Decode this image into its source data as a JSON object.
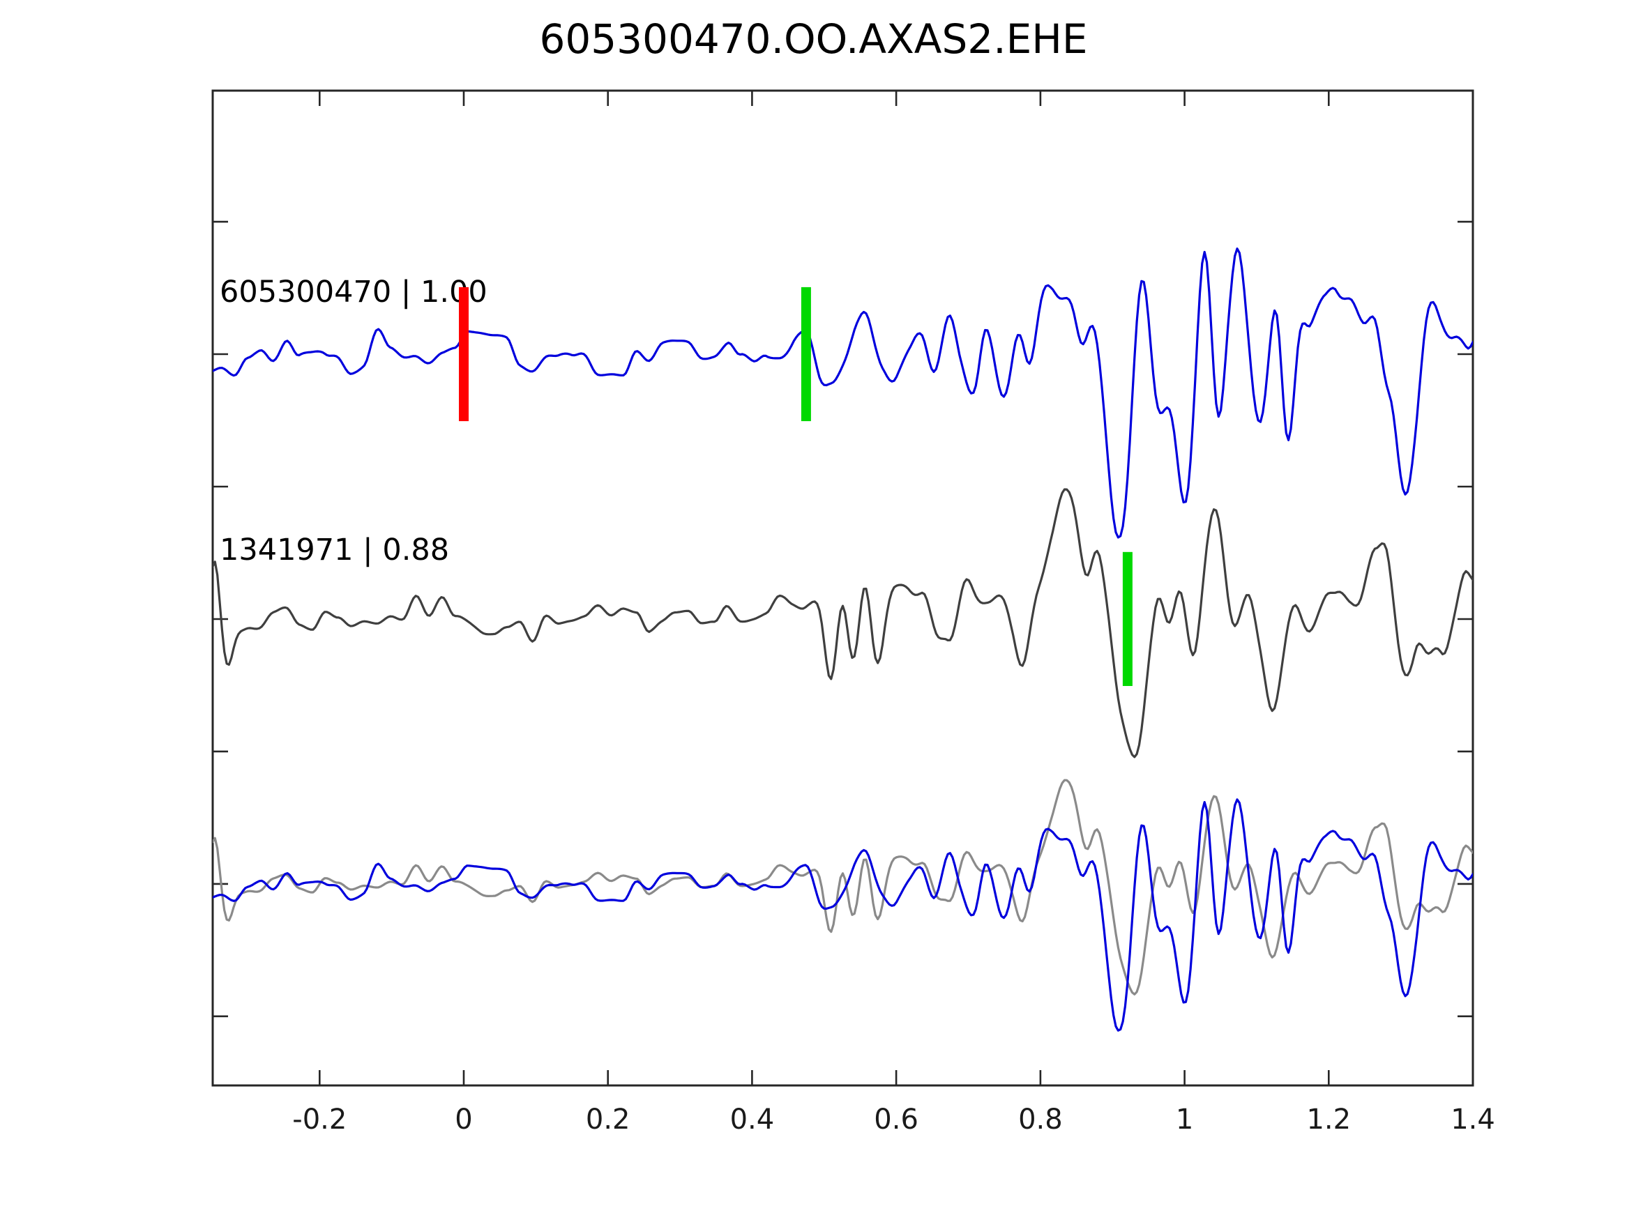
{
  "title": "605300470.OO.AXAS2.EHE",
  "chart_data": {
    "type": "line",
    "title": "605300470.OO.AXAS2.EHE",
    "xlabel": "",
    "ylabel": "",
    "x_range": [
      -0.3483,
      1.4
    ],
    "y_range": [
      -2.761,
      0.995
    ],
    "x_ticks": [
      -0.2,
      0,
      0.2,
      0.4,
      0.6,
      0.8,
      1,
      1.2,
      1.4
    ],
    "x_tick_labels": [
      "-0.2",
      "0",
      "0.2",
      "0.4",
      "0.6",
      "0.8",
      "1",
      "1.2",
      "1.4"
    ],
    "y_ticks": [
      0.5,
      0,
      -0.5,
      -1,
      -1.5,
      -2,
      -2.5
    ],
    "y_tick_labels": [
      "",
      "",
      "",
      "",
      "",
      "",
      ""
    ],
    "grid": false,
    "legend": null,
    "tick_style": "inward-on-all-four-spines",
    "colors": {
      "template_blue": "#0000dd",
      "detection_gray": "#3f3f3f",
      "overlay_gray": "#8a8a8a",
      "pick_marker_red": "#ff0000",
      "detect_marker_green": "#00d800",
      "spine": "#262626",
      "tick_label_text": "#1a1a1a",
      "label_text": "#000000"
    },
    "marker_half_height": 0.253,
    "marker_width_px": 14,
    "rows": [
      {
        "offset": 0,
        "id": "605300470",
        "correlation": "1.00",
        "label": "605300470 | 1.00",
        "series": [
          {
            "name": "template-605300470",
            "color": "#0000dd",
            "scale": 1,
            "seed": 20,
            "env": [
              [
                -0.35,
                0.1
              ],
              [
                0.4,
                0.1
              ],
              [
                0.47,
                0.13
              ],
              [
                0.6,
                0.14
              ],
              [
                0.72,
                0.16
              ],
              [
                0.86,
                0.17
              ],
              [
                0.93,
                0.13
              ],
              [
                1.18,
                0.15
              ],
              [
                1.4,
                0.13
              ]
            ],
            "features": [
              [
                0.475,
                0.013,
                0.16
              ],
              [
                0.51,
                0.012,
                -0.1
              ],
              [
                0.555,
                0.01,
                0.1
              ],
              [
                0.585,
                0.012,
                -0.12
              ],
              [
                0.63,
                0.012,
                0.1
              ],
              [
                0.675,
                0.012,
                0.12
              ],
              [
                0.705,
                0.01,
                -0.1
              ],
              [
                0.725,
                0.01,
                0.12
              ],
              [
                0.75,
                0.011,
                -0.16
              ],
              [
                0.77,
                0.009,
                0.1
              ],
              [
                0.787,
                0.009,
                -0.14
              ],
              [
                0.81,
                0.011,
                0.16
              ],
              [
                0.838,
                0.012,
                0.18
              ],
              [
                0.858,
                0.009,
                -0.1
              ],
              [
                0.872,
                0.009,
                0.14
              ],
              [
                0.908,
                0.015,
                -0.72
              ],
              [
                0.94,
                0.012,
                0.4
              ],
              [
                0.963,
                0.01,
                -0.18
              ],
              [
                1.002,
                0.012,
                -0.52
              ],
              [
                1.027,
                0.011,
                0.42
              ],
              [
                1.046,
                0.009,
                -0.46
              ],
              [
                1.076,
                0.011,
                0.38
              ],
              [
                1.104,
                0.011,
                -0.24
              ],
              [
                1.128,
                0.007,
                0.16
              ],
              [
                1.145,
                0.009,
                -0.36
              ],
              [
                1.2,
                0.022,
                0.22
              ],
              [
                1.245,
                0.016,
                0.2
              ],
              [
                1.278,
                0.008,
                -0.1
              ],
              [
                1.307,
                0.013,
                -0.52
              ],
              [
                1.345,
                0.01,
                0.1
              ],
              [
                1.385,
                0.012,
                0.08
              ]
            ]
          }
        ],
        "markers": [
          {
            "t": 0.0,
            "color": "#ff0000",
            "name": "pick-marker-red"
          },
          {
            "t": 0.475,
            "color": "#00d800",
            "name": "template-marker-green"
          }
        ]
      },
      {
        "offset": -1,
        "id": "1341971",
        "correlation": "0.88",
        "label": "1341971 | 0.88",
        "series": [
          {
            "name": "detection-1341971",
            "color": "#3f3f3f",
            "scale": 1,
            "seed": 7,
            "env": [
              [
                -0.35,
                0.09
              ],
              [
                0.44,
                0.09
              ],
              [
                0.49,
                0.12
              ],
              [
                0.62,
                0.12
              ],
              [
                0.78,
                0.13
              ],
              [
                0.92,
                0.14
              ],
              [
                1.4,
                0.14
              ]
            ],
            "features": [
              [
                -0.345,
                0.006,
                0.22
              ],
              [
                -0.328,
                0.007,
                -0.15
              ],
              [
                0.493,
                0.01,
                0.15
              ],
              [
                0.511,
                0.01,
                -0.3
              ],
              [
                0.524,
                0.009,
                0.27
              ],
              [
                0.54,
                0.009,
                -0.2
              ],
              [
                0.555,
                0.009,
                0.22
              ],
              [
                0.571,
                0.01,
                -0.26
              ],
              [
                0.6,
                0.012,
                0.12
              ],
              [
                0.638,
                0.01,
                0.1
              ],
              [
                0.675,
                0.012,
                -0.15
              ],
              [
                0.7,
                0.01,
                0.1
              ],
              [
                0.745,
                0.01,
                0.1
              ],
              [
                0.77,
                0.011,
                -0.2
              ],
              [
                0.835,
                0.02,
                0.36
              ],
              [
                0.862,
                0.009,
                -0.12
              ],
              [
                0.88,
                0.009,
                0.16
              ],
              [
                0.906,
                0.009,
                -0.22
              ],
              [
                0.928,
                0.014,
                -0.52
              ],
              [
                0.968,
                0.01,
                0.14
              ],
              [
                0.993,
                0.009,
                0.16
              ],
              [
                1.012,
                0.008,
                -0.12
              ],
              [
                1.043,
                0.012,
                0.36
              ],
              [
                1.065,
                0.008,
                -0.1
              ],
              [
                1.09,
                0.008,
                0.08
              ],
              [
                1.122,
                0.01,
                -0.34
              ],
              [
                1.15,
                0.01,
                0.1
              ],
              [
                1.175,
                0.01,
                -0.12
              ],
              [
                1.22,
                0.015,
                0.12
              ],
              [
                1.265,
                0.016,
                0.36
              ],
              [
                1.305,
                0.012,
                -0.28
              ],
              [
                1.36,
                0.009,
                -0.14
              ],
              [
                1.39,
                0.008,
                0.1
              ]
            ]
          }
        ],
        "markers": [
          {
            "t": 0.921,
            "color": "#00d800",
            "name": "detection-marker-green"
          }
        ]
      },
      {
        "offset": -2,
        "id": "",
        "correlation": "",
        "label": "",
        "series": [
          {
            "name": "detection-1341971-overlay",
            "ref": 1,
            "color": "#8a8a8a",
            "scale": 0.8
          },
          {
            "name": "template-605300470-overlay",
            "ref": 0,
            "color": "#0000dd",
            "scale": 0.8
          }
        ],
        "markers": []
      }
    ]
  }
}
